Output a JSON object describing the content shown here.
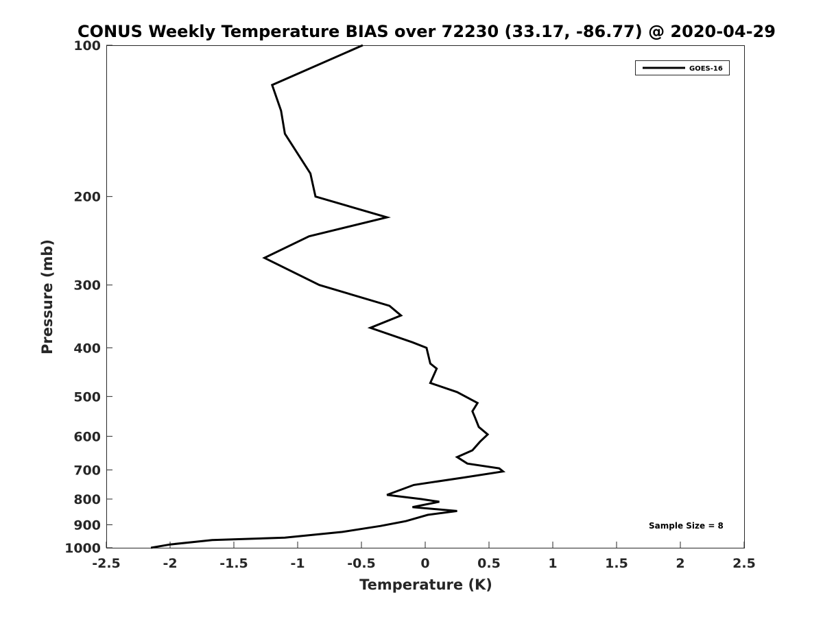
{
  "chart_data": {
    "type": "line",
    "title": "CONUS Weekly Temperature BIAS over 72230 (33.17, -86.77) @ 2020-04-29",
    "xlabel": "Temperature (K)",
    "ylabel": "Pressure (mb)",
    "xlim": [
      -2.5,
      2.5
    ],
    "ylim": [
      100,
      1000
    ],
    "y_scale": "log",
    "y_reversed": true,
    "x_ticks": [
      "-2.5",
      "-2",
      "-1.5",
      "-1",
      "-0.5",
      "0",
      "0.5",
      "1",
      "1.5",
      "2",
      "2.5"
    ],
    "y_ticks": [
      "100",
      "200",
      "300",
      "400",
      "500",
      "600",
      "700",
      "800",
      "900",
      "1000"
    ],
    "grid": false,
    "legend_position": "top-right",
    "series": [
      {
        "name": "GOES-16",
        "color": "#000000",
        "x": [
          -0.49,
          -1.2,
          -1.13,
          -1.1,
          -0.9,
          -0.86,
          -0.3,
          -0.91,
          -1.26,
          -0.83,
          -0.28,
          -0.19,
          -0.43,
          -0.1,
          0.01,
          0.04,
          0.09,
          0.04,
          0.25,
          0.41,
          0.37,
          0.39,
          0.42,
          0.49,
          0.43,
          0.37,
          0.25,
          0.33,
          0.58,
          0.61,
          0.3,
          -0.09,
          -0.3,
          -0.03,
          0.11,
          -0.1,
          0.25,
          0.02,
          -0.15,
          -0.35,
          -0.65,
          -1.1,
          -1.67,
          -2.0,
          -2.15
        ],
        "y": [
          100,
          120,
          135,
          150,
          180,
          200,
          220,
          240,
          265,
          300,
          330,
          345,
          365,
          390,
          400,
          430,
          440,
          470,
          490,
          515,
          535,
          550,
          575,
          595,
          615,
          640,
          660,
          680,
          695,
          705,
          725,
          750,
          785,
          800,
          810,
          830,
          845,
          860,
          885,
          905,
          930,
          955,
          965,
          985,
          1000
        ]
      }
    ],
    "annotations": [
      "Sample Size = 8"
    ]
  }
}
